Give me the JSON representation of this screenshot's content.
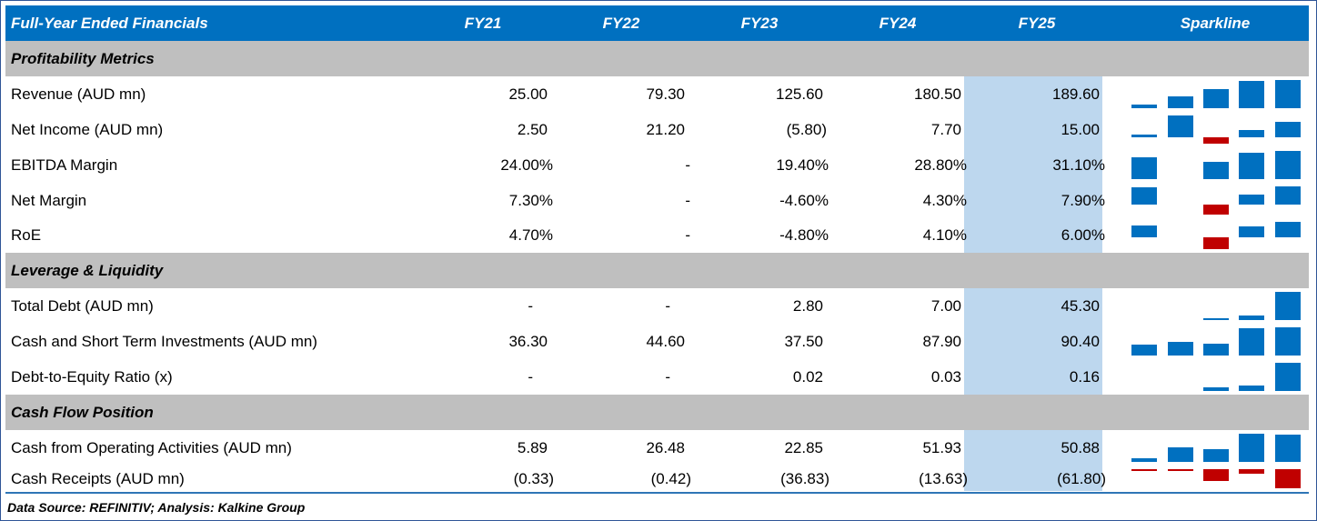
{
  "header": {
    "title": "Full-Year Ended Financials",
    "columns": [
      "FY21",
      "FY22",
      "FY23",
      "FY24",
      "FY25"
    ],
    "sparkline": "Sparkline"
  },
  "sections": [
    {
      "title": "Profitability Metrics",
      "rows": [
        {
          "label": "Revenue (AUD mn)",
          "values": [
            "25.00",
            "79.30",
            "125.60",
            "180.50",
            "189.60"
          ],
          "spark": [
            25.0,
            79.3,
            125.6,
            180.5,
            189.6
          ]
        },
        {
          "label": "Net Income (AUD mn)",
          "values": [
            "2.50",
            "21.20",
            "(5.80)",
            "7.70",
            "15.00"
          ],
          "spark": [
            2.5,
            21.2,
            -5.8,
            7.7,
            15.0
          ]
        },
        {
          "label": "EBITDA Margin",
          "values": [
            "24.00%",
            "-",
            "19.40%",
            "28.80%",
            "31.10%"
          ],
          "spark": [
            24.0,
            0,
            19.4,
            28.8,
            31.1
          ]
        },
        {
          "label": "Net Margin",
          "values": [
            "7.30%",
            "-",
            "-4.60%",
            "4.30%",
            "7.90%"
          ],
          "spark": [
            7.3,
            0,
            -4.6,
            4.3,
            7.9
          ]
        },
        {
          "label": "RoE",
          "values": [
            "4.70%",
            "-",
            "-4.80%",
            "4.10%",
            "6.00%"
          ],
          "spark": [
            4.7,
            0,
            -4.8,
            4.1,
            6.0
          ]
        }
      ]
    },
    {
      "title": "Leverage & Liquidity",
      "rows": [
        {
          "label": "Total Debt (AUD mn)",
          "values": [
            "-",
            "-",
            "2.80",
            "7.00",
            "45.30"
          ],
          "spark": [
            0,
            0,
            2.8,
            7.0,
            45.3
          ]
        },
        {
          "label": "Cash and Short Term Investments (AUD mn)",
          "values": [
            "36.30",
            "44.60",
            "37.50",
            "87.90",
            "90.40"
          ],
          "spark": [
            36.3,
            44.6,
            37.5,
            87.9,
            90.4
          ]
        },
        {
          "label": "Debt-to-Equity Ratio (x)",
          "values": [
            "-",
            "-",
            "0.02",
            "0.03",
            "0.16"
          ],
          "spark": [
            0,
            0,
            0.02,
            0.03,
            0.16
          ]
        }
      ]
    },
    {
      "title": "Cash Flow Position",
      "rows": [
        {
          "label": "Cash from Operating Activities (AUD mn)",
          "values": [
            "5.89",
            "26.48",
            "22.85",
            "51.93",
            "50.88"
          ],
          "spark": [
            5.89,
            26.48,
            22.85,
            51.93,
            50.88
          ]
        },
        {
          "label": "Cash Receipts (AUD mn)",
          "values": [
            "(0.33)",
            "(0.42)",
            "(36.83)",
            "(13.63)",
            "(61.80)"
          ],
          "spark": [
            -0.33,
            -0.42,
            -36.83,
            -13.63,
            -61.8
          ]
        }
      ]
    }
  ],
  "footer": "Data Source: REFINITIV; Analysis: Kalkine Group",
  "colors": {
    "header": "#0070c0",
    "section": "#bfbfbf",
    "fy25_highlight": "#bdd7ee",
    "positive_bar": "#0070c0",
    "negative_bar": "#c00000"
  }
}
